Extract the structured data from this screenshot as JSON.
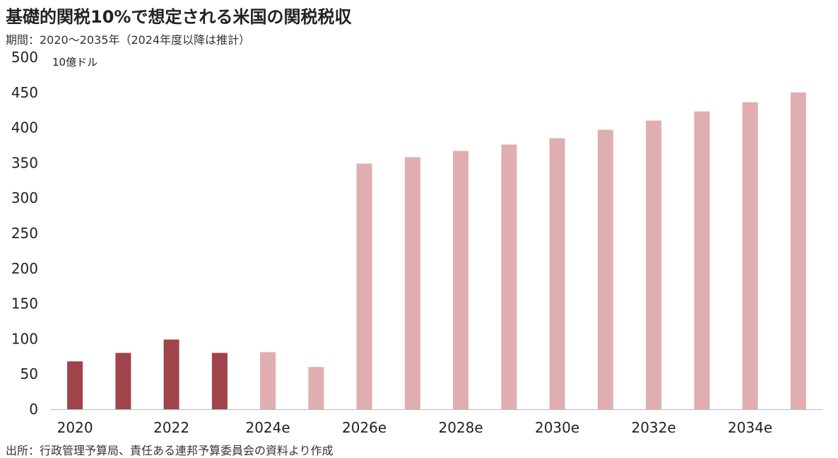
{
  "title": "基礎的関税10%で想定される米国の関税税収",
  "subtitle": "期間：2020〜2035年（2024年度以降は推計）",
  "source": "出所：行政管理予算局、責任ある連邦予算委員会の資料より作成",
  "colors": {
    "actual": "#a0434a",
    "estimate": "#e0aeb0",
    "axis": "#bbbbbb",
    "text": "#222222"
  },
  "chart_data": {
    "type": "bar",
    "title": "基礎的関税10%で想定される米国の関税税収",
    "ylabel": "10億ドル",
    "xlabel": "",
    "ylim": [
      0,
      500
    ],
    "y_ticks": [
      0,
      50,
      100,
      150,
      200,
      250,
      300,
      350,
      400,
      450,
      500
    ],
    "grid": false,
    "categories": [
      "2020",
      "2021",
      "2022",
      "2023",
      "2024e",
      "2025e",
      "2026e",
      "2027e",
      "2028e",
      "2029e",
      "2030e",
      "2031e",
      "2032e",
      "2033e",
      "2034e",
      "2035e"
    ],
    "x_tick_labels": [
      "2020",
      "",
      "2022",
      "",
      "2024e",
      "",
      "2026e",
      "",
      "2028e",
      "",
      "2030e",
      "",
      "2032e",
      "",
      "2034e",
      ""
    ],
    "values": [
      68,
      80,
      99,
      80,
      81,
      60,
      349,
      358,
      367,
      376,
      385,
      397,
      410,
      423,
      436,
      450
    ],
    "estimated": [
      false,
      false,
      false,
      false,
      true,
      true,
      true,
      true,
      true,
      true,
      true,
      true,
      true,
      true,
      true,
      true
    ]
  }
}
